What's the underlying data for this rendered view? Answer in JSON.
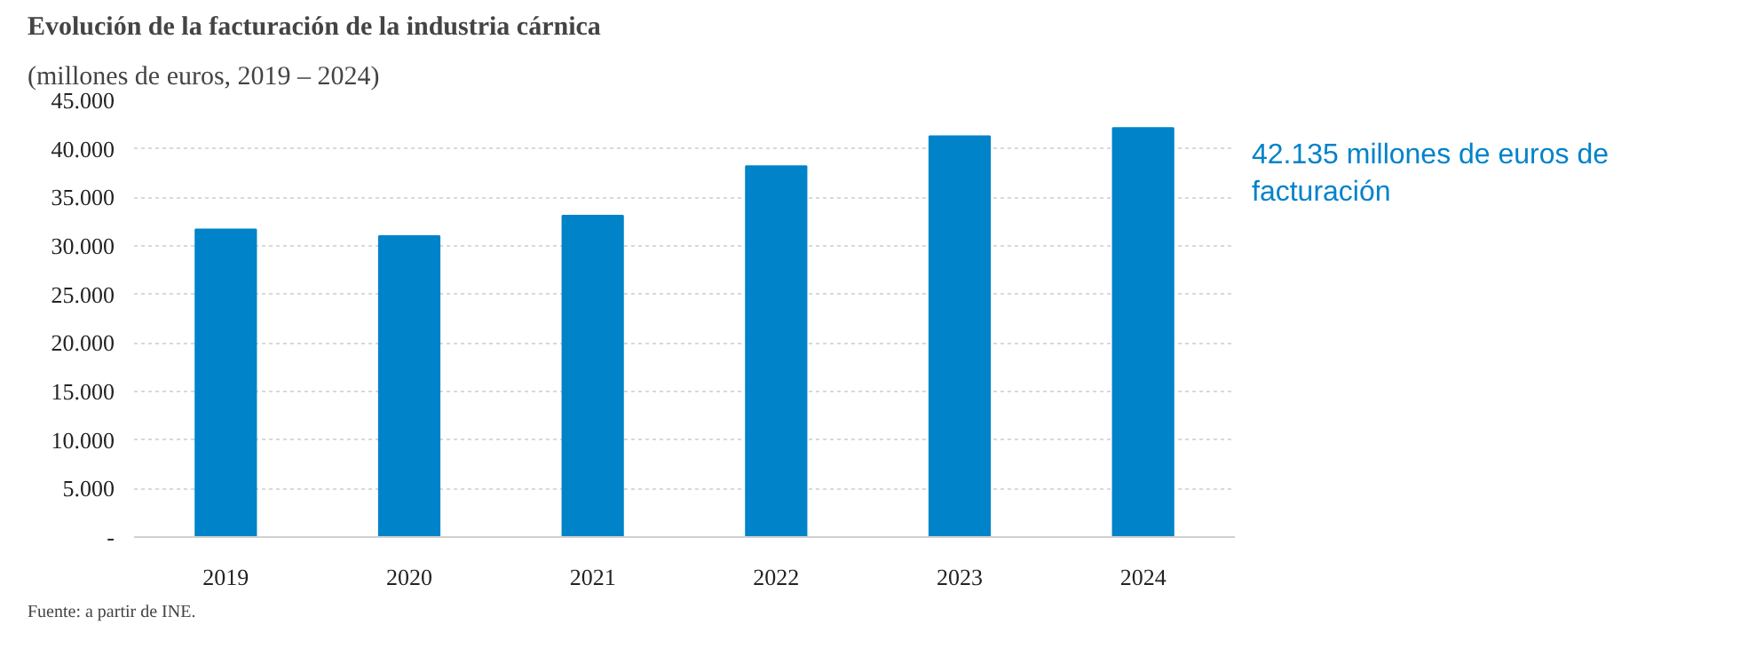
{
  "chart_data": {
    "type": "bar",
    "title": "Evolución de la facturación de la industria cárnica",
    "subtitle": "(millones de euros, 2019 – 2024)",
    "categories": [
      "2019",
      "2020",
      "2021",
      "2022",
      "2023",
      "2024"
    ],
    "values": [
      31700,
      31000,
      33100,
      38200,
      41300,
      42135
    ],
    "color": "#0083c9",
    "ylim": [
      0,
      45000
    ],
    "yticks": [
      {
        "value": 0,
        "label": "-"
      },
      {
        "value": 5000,
        "label": "5.000"
      },
      {
        "value": 10000,
        "label": "10.000"
      },
      {
        "value": 15000,
        "label": "15.000"
      },
      {
        "value": 20000,
        "label": "20.000"
      },
      {
        "value": 25000,
        "label": "25.000"
      },
      {
        "value": 30000,
        "label": "30.000"
      },
      {
        "value": 35000,
        "label": "35.000"
      },
      {
        "value": 40000,
        "label": "40.000"
      },
      {
        "value": 45000,
        "label": "45.000"
      }
    ],
    "grid": "y",
    "annotations": [
      "42.135 millones de euros de facturación",
      "Fuente: a partir de INE."
    ]
  }
}
